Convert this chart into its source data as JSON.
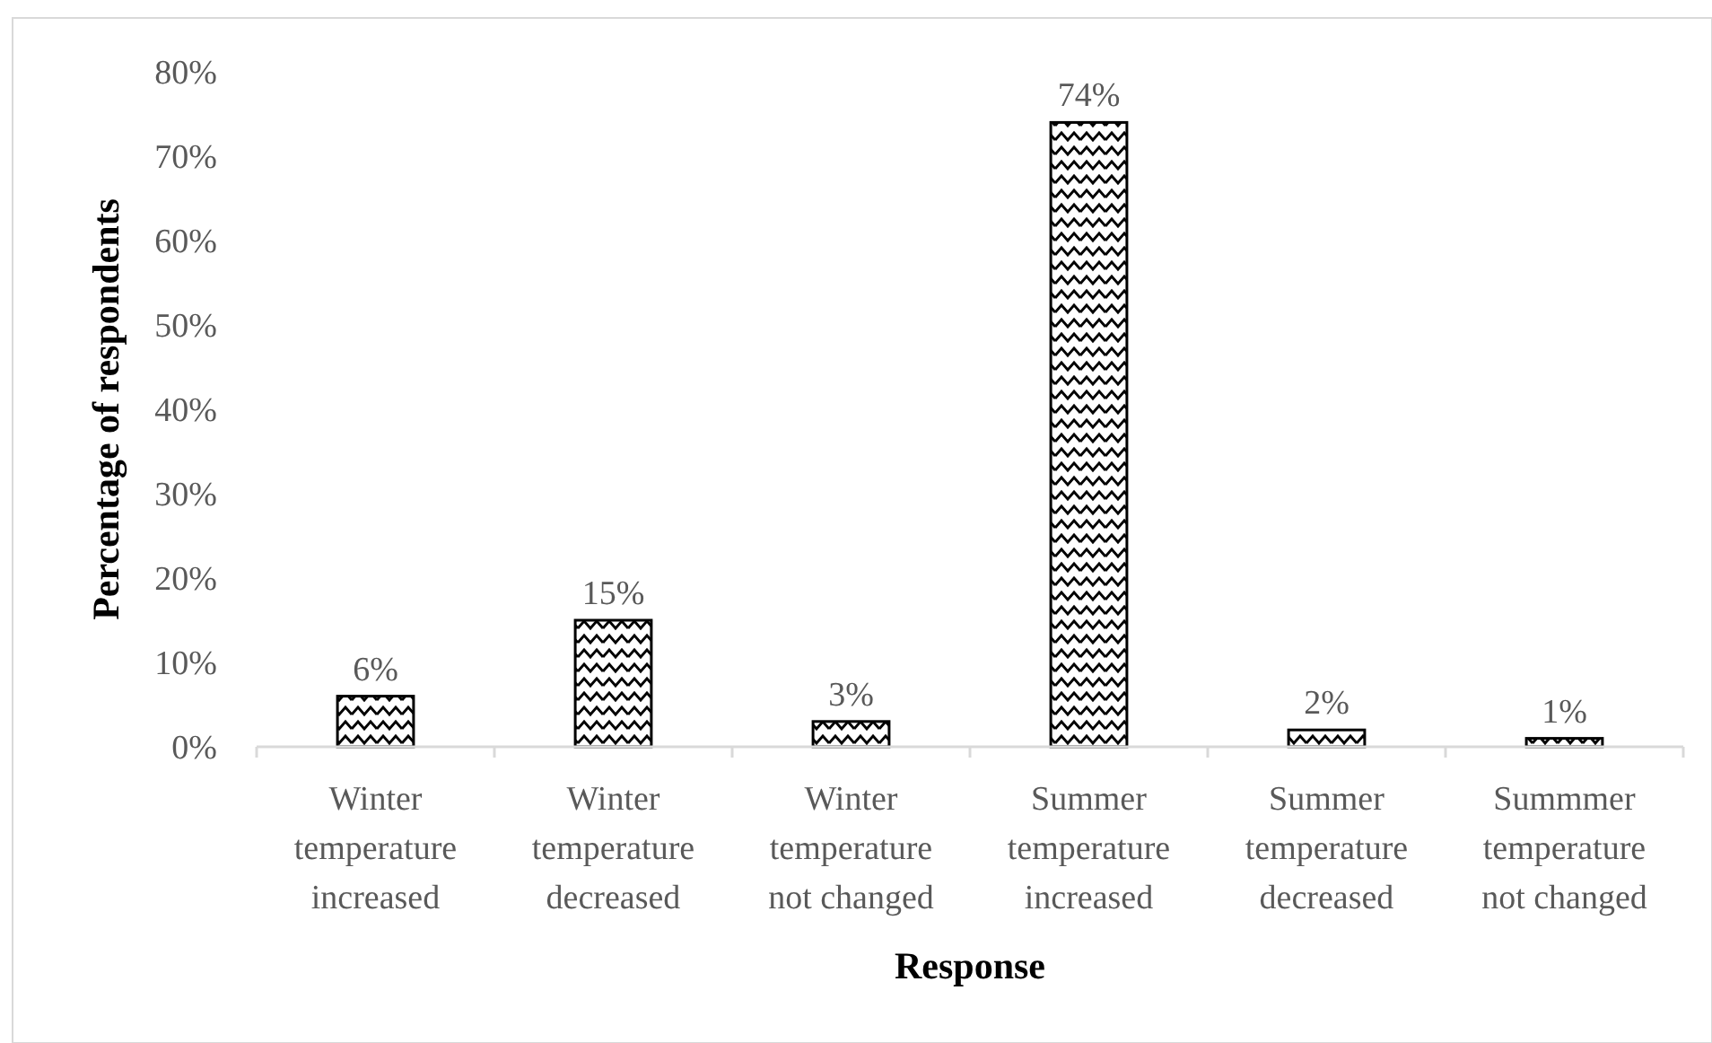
{
  "chart_data": {
    "type": "bar",
    "xlabel": "Response",
    "ylabel": "Percentage of respondents",
    "categories": [
      "Winter temperature increased",
      "Winter temperature decreased",
      "Winter temperature not changed",
      "Summer temperature increased",
      "Summer temperature decreased",
      "Summmer temperature not changed"
    ],
    "values": [
      6,
      15,
      3,
      74,
      2,
      1
    ],
    "color": "#000000",
    "value_labels": [
      "6%",
      "15%",
      "3%",
      "74%",
      "2%",
      "1%"
    ],
    "ylim": [
      0,
      80
    ],
    "yticks": [
      {
        "value": 0,
        "label": "0%"
      },
      {
        "value": 10,
        "label": "10%"
      },
      {
        "value": 20,
        "label": "20%"
      },
      {
        "value": 30,
        "label": "30%"
      },
      {
        "value": 40,
        "label": "40%"
      },
      {
        "value": 50,
        "label": "50%"
      },
      {
        "value": 60,
        "label": "60%"
      },
      {
        "value": 70,
        "label": "70%"
      },
      {
        "value": 80,
        "label": "80%"
      }
    ]
  }
}
